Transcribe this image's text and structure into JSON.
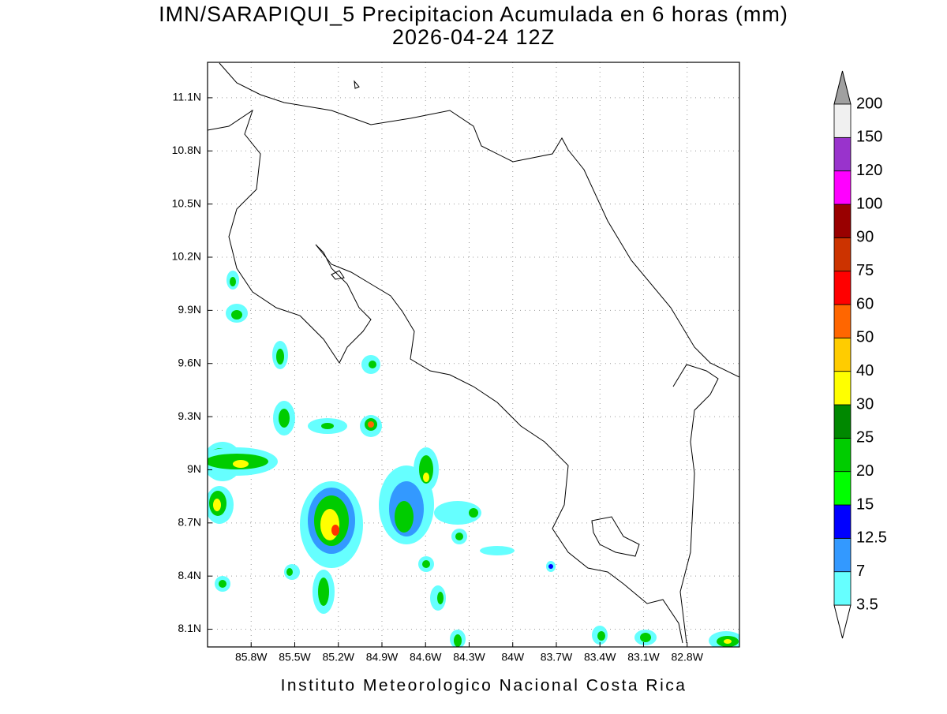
{
  "title": "IMN/SARAPIQUI_5 Precipitacion Acumulada en 6 horas (mm)",
  "subtitle": "2026-04-24 12Z",
  "footer": "Instituto Meteorologico Nacional Costa Rica",
  "map": {
    "lon_range": [
      -86.1,
      -82.44
    ],
    "lat_range": [
      8.0,
      11.3
    ],
    "lat_ticks": [
      {
        "value": 11.1,
        "label": "11.1N"
      },
      {
        "value": 10.8,
        "label": "10.8N"
      },
      {
        "value": 10.5,
        "label": "10.5N"
      },
      {
        "value": 10.2,
        "label": "10.2N"
      },
      {
        "value": 9.9,
        "label": "9.9N"
      },
      {
        "value": 9.6,
        "label": "9.6N"
      },
      {
        "value": 9.3,
        "label": "9.3N"
      },
      {
        "value": 9,
        "label": "9N"
      },
      {
        "value": 8.7,
        "label": "8.7N"
      },
      {
        "value": 8.4,
        "label": "8.4N"
      },
      {
        "value": 8.1,
        "label": "8.1N"
      }
    ],
    "lon_ticks": [
      {
        "value": -85.8,
        "label": "85.8W"
      },
      {
        "value": -85.5,
        "label": "85.5W"
      },
      {
        "value": -85.2,
        "label": "85.2W"
      },
      {
        "value": -84.9,
        "label": "84.9W"
      },
      {
        "value": -84.6,
        "label": "84.6W"
      },
      {
        "value": -84.3,
        "label": "84.3W"
      },
      {
        "value": -84,
        "label": "84W"
      },
      {
        "value": -83.7,
        "label": "83.7W"
      },
      {
        "value": -83.4,
        "label": "83.4W"
      },
      {
        "value": -83.1,
        "label": "83.1W"
      },
      {
        "value": -82.8,
        "label": "82.8W"
      }
    ]
  },
  "colorbar": {
    "levels": [
      3.5,
      7,
      12.5,
      15,
      20,
      25,
      30,
      40,
      50,
      60,
      75,
      90,
      100,
      120,
      150,
      200
    ],
    "colors": [
      "#66ffff",
      "#3399ff",
      "#0000ff",
      "#00ff00",
      "#00cc00",
      "#008800",
      "#ffff00",
      "#ffcc00",
      "#ff6600",
      "#ff0000",
      "#cc3300",
      "#990000",
      "#ff00ff",
      "#9933cc",
      "#f0f0f0"
    ],
    "below_color": "#ffffff",
    "above_color": "#a0a0a0"
  }
}
